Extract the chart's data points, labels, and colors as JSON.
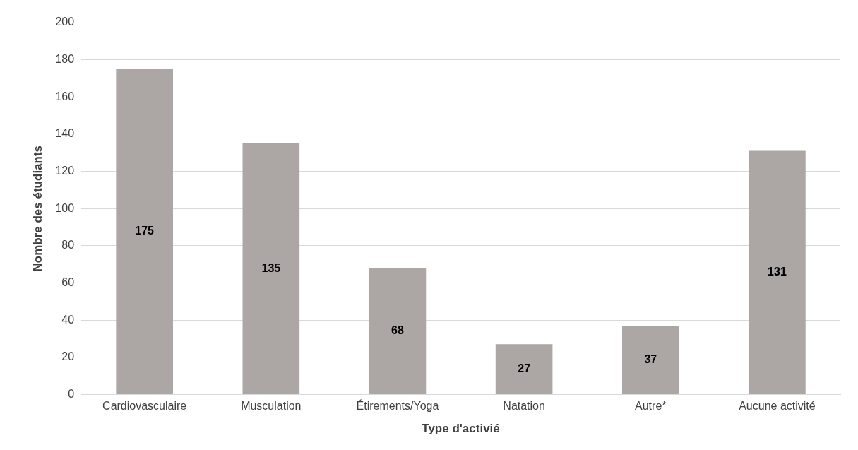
{
  "chart_data": {
    "type": "bar",
    "xlabel": "Type d'activié",
    "ylabel": "Nombre des étudiants",
    "categories": [
      "Cardiovasculaire",
      "Musculation",
      "Étirements/Yoga",
      "Natation",
      "Autre*",
      "Aucune activité"
    ],
    "values": [
      175,
      135,
      68,
      27,
      37,
      131
    ],
    "color": "#aca6a5",
    "ylim": [
      0,
      200
    ],
    "yticks": [
      0,
      20,
      40,
      60,
      80,
      100,
      120,
      140,
      160,
      180,
      200
    ],
    "grid": "y",
    "data_labels": true,
    "legend": false
  }
}
